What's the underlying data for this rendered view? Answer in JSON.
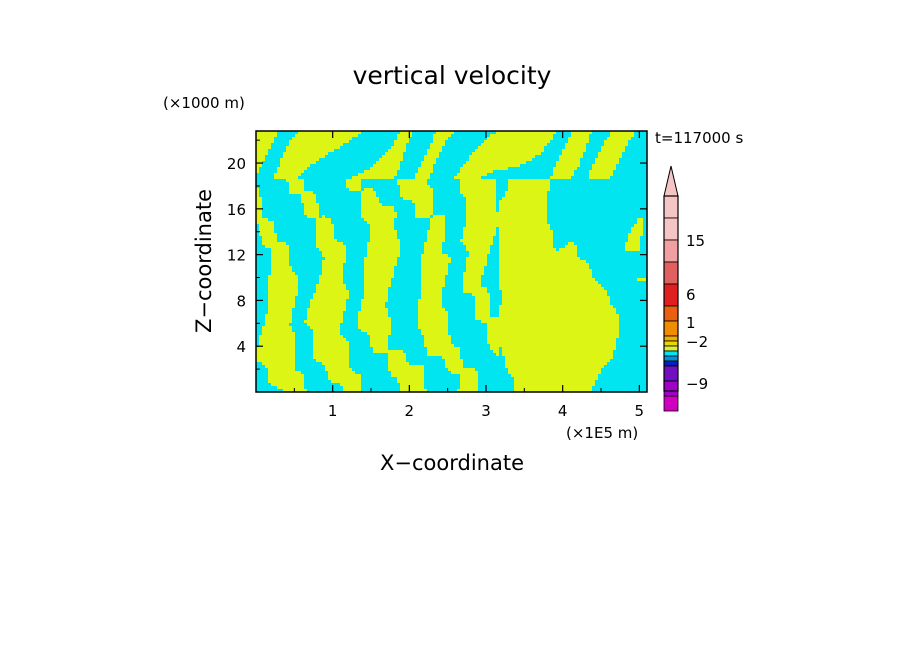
{
  "chart_data": {
    "type": "heatmap",
    "title": "vertical velocity",
    "xlabel": "X−coordinate",
    "ylabel": "Z−coordinate",
    "x_unit": "(×1E5 m)",
    "y_unit": "(×1000 m)",
    "time_label": "t=117000 s",
    "xlim": [
      0,
      5.1
    ],
    "ylim": [
      0,
      22.8
    ],
    "x_ticks": [
      1,
      2,
      3,
      4,
      5
    ],
    "y_ticks": [
      4,
      8,
      12,
      16,
      20
    ],
    "legend_position": "right",
    "colorbar": {
      "label_values": [
        "15",
        "6",
        "1",
        "−2",
        "−9"
      ],
      "colors_top_to_bottom": [
        "#f5c4c4",
        "#f5c4c4",
        "#f0a0a0",
        "#e06060",
        "#e02020",
        "#e86010",
        "#f08c00",
        "#f0b000",
        "#e8d800",
        "#d8f040",
        "#00e6f0",
        "#0090e0",
        "#0020c0",
        "#7010c0",
        "#a000c8",
        "#d000c0"
      ]
    },
    "colors": {
      "positive": "#dcf514",
      "negative": "#00e5f0"
    }
  }
}
